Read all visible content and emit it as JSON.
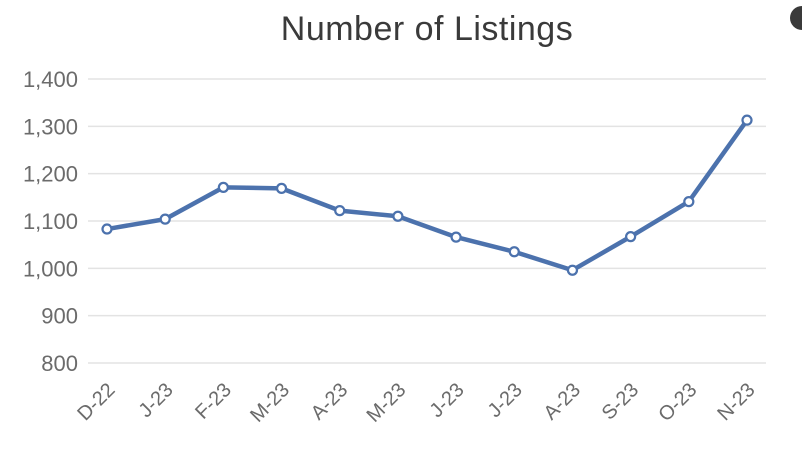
{
  "chart_data": {
    "type": "line",
    "title": "Number of Listings",
    "categories": [
      "D-22",
      "J-23",
      "F-23",
      "M-23",
      "A-23",
      "M-23",
      "J-23",
      "J-23",
      "A-23",
      "S-23",
      "O-23",
      "N-23"
    ],
    "series": [
      {
        "name": "Number of Listings",
        "values": [
          1083,
          1104,
          1171,
          1169,
          1122,
          1110,
          1066,
          1035,
          996,
          1067,
          1141,
          1313
        ]
      }
    ],
    "ylim": [
      800,
      1400
    ],
    "ytick_step": 100,
    "ytick_labels": [
      "800",
      "900",
      "1,000",
      "1,100",
      "1,200",
      "1,300",
      "1,400"
    ],
    "xlabel": "",
    "ylabel": "",
    "grid": true,
    "legend": "none",
    "x_label_rotation_deg": -45,
    "colors": {
      "line": "#4c72ad",
      "marker_fill": "#ffffff",
      "gridline": "#e3e3e3",
      "axis_label": "#6b6b6b",
      "title": "#3a3a3a"
    }
  },
  "edge_widget": {
    "note": "partially visible dark circular control at top-right edge"
  }
}
